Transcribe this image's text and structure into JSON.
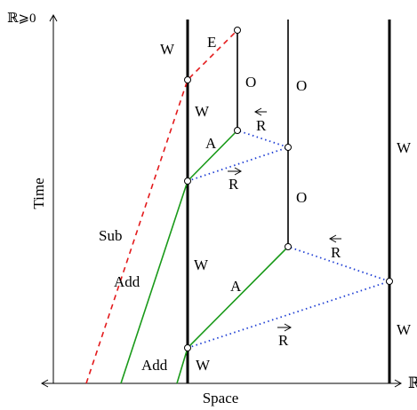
{
  "axes": {
    "y_label": "ℝ⩾0",
    "y_title": "Time",
    "x_title": "Space",
    "x_label": "ℝ"
  },
  "labels": {
    "w_top": "W",
    "e": "E",
    "o_left": "O",
    "o_mid": "O",
    "w_upper": "W",
    "r_back_upper": "R",
    "a_upper": "A",
    "r_fwd_upper": "R",
    "o_lower": "O",
    "w_right": "W",
    "sub": "Sub",
    "w_middle": "W",
    "r_back_lower": "R",
    "add_mid": "Add",
    "a_lower": "A",
    "r_fwd_lower": "R",
    "w_right_low": "W",
    "add_bottom": "Add",
    "w_bottom": "W"
  },
  "colors": {
    "axis": "#000000",
    "worldline": "#000000",
    "add": "#1a9a1a",
    "sub": "#e31a1c",
    "signal": "#1f3fd4"
  }
}
